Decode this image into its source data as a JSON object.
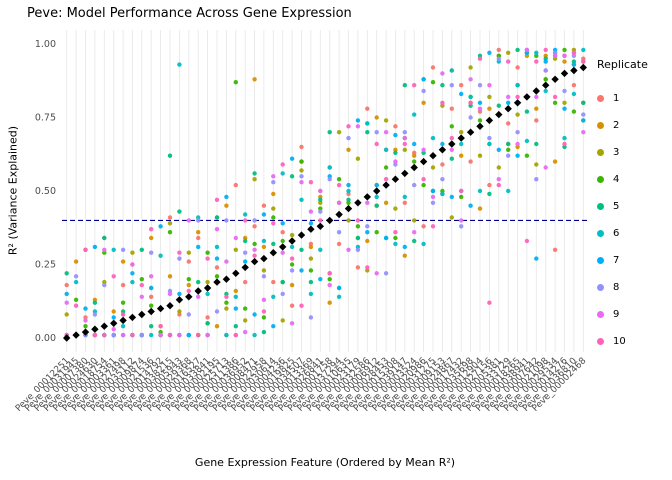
{
  "legend": {
    "title": "Replicate",
    "position": "right"
  },
  "chart_data": {
    "type": "scatter",
    "title": "Peve: Model Performance Across Gene Expression",
    "xlabel": "Gene Expression Feature (Ordered by Mean R²)",
    "ylabel": "R² (Variance Explained)",
    "ylim": [
      0,
      1
    ],
    "grid": "vertical-minor-per-feature",
    "legend_position": "right",
    "y_ticks": [
      "0.00",
      "0.25",
      "0.50",
      "0.75",
      "1.00"
    ],
    "y_tick_values": [
      0,
      0.25,
      0.5,
      0.75,
      1
    ],
    "threshold": {
      "y": 0.4,
      "style": "dashed",
      "color": "#00008B"
    },
    "style": {
      "grid_color": "#e6e6e6",
      "mean_marker": "black-diamond",
      "point_radius": 2.2
    },
    "features": [
      "Peve_00012251",
      "Peve_00031945",
      "Peve_00007380",
      "Peve_00024630",
      "Peve_00018754",
      "Peve_00003361",
      "Peve_00027498",
      "Peve_00035112",
      "Peve_00009874",
      "Peve_00021536",
      "Peve_00014792",
      "Peve_00038215",
      "Peve_00005943",
      "Peve_00029368",
      "Peve_00016527",
      "Peve_00033841",
      "Peve_00002195",
      "Peve_00025713",
      "Peve_00011386",
      "Peve_00036952",
      "Peve_00008471",
      "Peve_00022958",
      "Peve_00030614",
      "Peve_00004236",
      "Peve_00019825",
      "Peve_00034507",
      "Peve_00013369",
      "Peve_00026841",
      "Peve_00001758",
      "Peve_00037294",
      "Peve_00010635",
      "Peve_00023179",
      "Peve_00032586",
      "Peve_00006912",
      "Peve_00028453",
      "Peve_00015308",
      "Peve_00039147",
      "Peve_00003524",
      "Peve_00020986",
      "Peve_00031275",
      "Peve_00009153",
      "Peve_00024867",
      "Peve_00017432",
      "Peve_00035698",
      "Peve_00012904",
      "Peve_00027156",
      "Peve_00005381",
      "Peve_00033729",
      "Peve_00018265",
      "Peve_00038941",
      "Peve_00007642",
      "Peve_00021098",
      "Peve_00029534",
      "Peve_00014276",
      "Peve_00036810",
      "Peve_00002468"
    ],
    "mean_r2": [
      0.0,
      0.01,
      0.02,
      0.03,
      0.04,
      0.05,
      0.06,
      0.07,
      0.08,
      0.09,
      0.1,
      0.11,
      0.13,
      0.14,
      0.16,
      0.17,
      0.19,
      0.2,
      0.22,
      0.24,
      0.26,
      0.27,
      0.29,
      0.31,
      0.33,
      0.35,
      0.37,
      0.38,
      0.4,
      0.42,
      0.44,
      0.46,
      0.48,
      0.5,
      0.52,
      0.54,
      0.56,
      0.58,
      0.6,
      0.62,
      0.64,
      0.66,
      0.68,
      0.7,
      0.72,
      0.74,
      0.76,
      0.78,
      0.8,
      0.82,
      0.84,
      0.86,
      0.88,
      0.9,
      0.91,
      0.92
    ],
    "series": [
      {
        "name": "1",
        "color": "#F8766D",
        "values": [
          0.18,
          0.01,
          0.07,
          0.01,
          0.34,
          0.01,
          0.18,
          0.25,
          0.01,
          0.14,
          0.01,
          0.41,
          0.08,
          0.26,
          0.34,
          0.07,
          0.24,
          0.01,
          0.52,
          0.19,
          0.38,
          0.45,
          0.19,
          0.36,
          0.11,
          0.65,
          0.32,
          0.5,
          0.58,
          0.32,
          0.49,
          0.24,
          0.78,
          0.45,
          0.64,
          0.72,
          0.46,
          0.63,
          0.38,
          0.92,
          0.59,
          0.78,
          0.86,
          0.6,
          0.77,
          0.52,
          0.98,
          0.73,
          0.92,
          0.97,
          0.74,
          0.91,
          0.3,
          0.96,
          0.86,
          0.95
        ]
      },
      {
        "name": "2",
        "color": "#D89000",
        "values": [
          0.01,
          0.26,
          0.01,
          0.13,
          0.01,
          0.09,
          0.26,
          0.01,
          0.01,
          0.34,
          0.04,
          0.21,
          0.01,
          0.18,
          0.36,
          0.05,
          0.04,
          0.45,
          0.16,
          0.34,
          0.88,
          0.31,
          0.49,
          0.19,
          0.18,
          0.6,
          0.31,
          0.48,
          0.12,
          0.46,
          0.64,
          0.34,
          0.33,
          0.75,
          0.46,
          0.64,
          0.28,
          0.62,
          0.8,
          0.5,
          0.49,
          0.91,
          0.62,
          0.8,
          0.44,
          0.78,
          0.96,
          0.66,
          0.65,
          0.96,
          0.78,
          0.96,
          0.6,
          0.94,
          0.93,
          0.8
        ]
      },
      {
        "name": "3",
        "color": "#A3A500",
        "values": [
          0.08,
          0.01,
          0.3,
          0.01,
          0.19,
          0.01,
          0.08,
          0.29,
          0.01,
          0.17,
          0.01,
          0.39,
          0.09,
          0.29,
          0.01,
          0.19,
          0.41,
          0.1,
          0.3,
          0.06,
          0.54,
          0.23,
          0.44,
          0.06,
          0.35,
          0.57,
          0.27,
          0.46,
          0.22,
          0.7,
          0.4,
          0.61,
          0.23,
          0.52,
          0.74,
          0.44,
          0.64,
          0.4,
          0.88,
          0.58,
          0.79,
          0.41,
          0.7,
          0.92,
          0.62,
          0.82,
          0.58,
          0.97,
          0.76,
          0.97,
          0.59,
          0.88,
          0.95,
          0.8,
          0.98,
          0.74
        ]
      },
      {
        "name": "4",
        "color": "#39B600",
        "values": [
          0.01,
          0.13,
          0.04,
          0.01,
          0.29,
          0.01,
          0.12,
          0.01,
          0.2,
          0.11,
          0.02,
          0.36,
          0.01,
          0.2,
          0.01,
          0.29,
          0.21,
          0.12,
          0.87,
          0.1,
          0.32,
          0.07,
          0.41,
          0.33,
          0.25,
          0.6,
          0.23,
          0.44,
          0.2,
          0.54,
          0.46,
          0.38,
          0.73,
          0.36,
          0.58,
          0.34,
          0.68,
          0.6,
          0.52,
          0.87,
          0.5,
          0.72,
          0.48,
          0.82,
          0.74,
          0.66,
          0.96,
          0.64,
          0.86,
          0.62,
          0.96,
          0.88,
          0.8,
          0.98,
          0.77,
          0.94
        ]
      },
      {
        "name": "5",
        "color": "#00BF7D",
        "values": [
          0.22,
          0.01,
          0.01,
          0.12,
          0.34,
          0.01,
          0.09,
          0.01,
          0.3,
          0.04,
          0.01,
          0.62,
          0.43,
          0.01,
          0.19,
          0.05,
          0.41,
          0.15,
          0.04,
          0.33,
          0.56,
          0.02,
          0.32,
          0.19,
          0.55,
          0.3,
          0.19,
          0.47,
          0.7,
          0.17,
          0.47,
          0.34,
          0.7,
          0.45,
          0.34,
          0.63,
          0.86,
          0.33,
          0.63,
          0.5,
          0.86,
          0.61,
          0.5,
          0.79,
          0.96,
          0.49,
          0.79,
          0.66,
          0.98,
          0.77,
          0.66,
          0.95,
          0.97,
          0.65,
          0.94,
          0.8
        ]
      },
      {
        "name": "6",
        "color": "#00BFC4",
        "values": [
          0.01,
          0.19,
          0.01,
          0.09,
          0.01,
          0.3,
          0.04,
          0.19,
          0.01,
          0.01,
          0.28,
          0.01,
          0.93,
          0.01,
          0.41,
          0.15,
          0.31,
          0.01,
          0.14,
          0.42,
          0.01,
          0.33,
          0.14,
          0.56,
          0.31,
          0.47,
          0.15,
          0.3,
          0.58,
          0.14,
          0.5,
          0.31,
          0.73,
          0.48,
          0.64,
          0.32,
          0.48,
          0.76,
          0.32,
          0.68,
          0.49,
          0.91,
          0.66,
          0.82,
          0.5,
          0.66,
          0.94,
          0.5,
          0.86,
          0.67,
          0.97,
          0.84,
          0.96,
          0.68,
          0.83,
          0.98
        ]
      },
      {
        "name": "7",
        "color": "#00B0F6",
        "values": [
          0.15,
          0.01,
          0.1,
          0.31,
          0.01,
          0.07,
          0.01,
          0.22,
          0.01,
          0.17,
          0.38,
          0.01,
          0.15,
          0.01,
          0.31,
          0.01,
          0.27,
          0.48,
          0.1,
          0.26,
          0.08,
          0.42,
          0.04,
          0.39,
          0.61,
          0.23,
          0.39,
          0.2,
          0.55,
          0.17,
          0.52,
          0.74,
          0.36,
          0.52,
          0.34,
          0.69,
          0.31,
          0.66,
          0.88,
          0.5,
          0.66,
          0.48,
          0.83,
          0.45,
          0.8,
          0.97,
          0.64,
          0.8,
          0.62,
          0.97,
          0.27,
          0.94,
          0.98,
          0.78,
          0.93,
          0.74
        ]
      },
      {
        "name": "8",
        "color": "#9590FF",
        "values": [
          0.01,
          0.21,
          0.01,
          0.08,
          0.18,
          0.01,
          0.3,
          0.01,
          0.01,
          0.29,
          0.01,
          0.16,
          0.27,
          0.08,
          0.4,
          0.01,
          0.09,
          0.4,
          0.01,
          0.29,
          0.4,
          0.21,
          0.53,
          0.15,
          0.23,
          0.55,
          0.07,
          0.43,
          0.54,
          0.36,
          0.68,
          0.3,
          0.38,
          0.7,
          0.22,
          0.59,
          0.7,
          0.52,
          0.84,
          0.46,
          0.54,
          0.86,
          0.38,
          0.75,
          0.86,
          0.68,
          0.95,
          0.62,
          0.7,
          0.98,
          0.54,
          0.91,
          0.97,
          0.84,
          0.96,
          0.76
        ]
      },
      {
        "name": "9",
        "color": "#E76BF3",
        "values": [
          0.12,
          0.01,
          0.06,
          0.01,
          0.3,
          0.03,
          0.01,
          0.25,
          0.14,
          0.21,
          0.01,
          0.15,
          0.01,
          0.4,
          0.14,
          0.01,
          0.37,
          0.26,
          0.34,
          0.02,
          0.3,
          0.13,
          0.55,
          0.29,
          0.05,
          0.53,
          0.43,
          0.5,
          0.18,
          0.46,
          0.3,
          0.72,
          0.46,
          0.22,
          0.7,
          0.6,
          0.68,
          0.36,
          0.64,
          0.48,
          0.9,
          0.64,
          0.4,
          0.88,
          0.78,
          0.86,
          0.54,
          0.82,
          0.66,
          0.98,
          0.82,
          0.58,
          0.96,
          0.96,
          0.97,
          0.7
        ]
      },
      {
        "name": "10",
        "color": "#FF62BC",
        "values": [
          0.01,
          0.11,
          0.3,
          0.01,
          0.01,
          0.21,
          0.08,
          0.01,
          0.18,
          0.37,
          0.04,
          0.01,
          0.29,
          0.16,
          0.01,
          0.27,
          0.47,
          0.14,
          0.01,
          0.4,
          0.28,
          0.09,
          0.39,
          0.59,
          0.27,
          0.11,
          0.53,
          0.4,
          0.22,
          0.52,
          0.72,
          0.4,
          0.24,
          0.66,
          0.54,
          0.36,
          0.66,
          0.86,
          0.54,
          0.38,
          0.8,
          0.68,
          0.5,
          0.8,
          0.95,
          0.12,
          0.52,
          0.94,
          0.82,
          0.33,
          0.94,
          0.98,
          0.82,
          0.66,
          0.97,
          0.94
        ]
      }
    ]
  }
}
